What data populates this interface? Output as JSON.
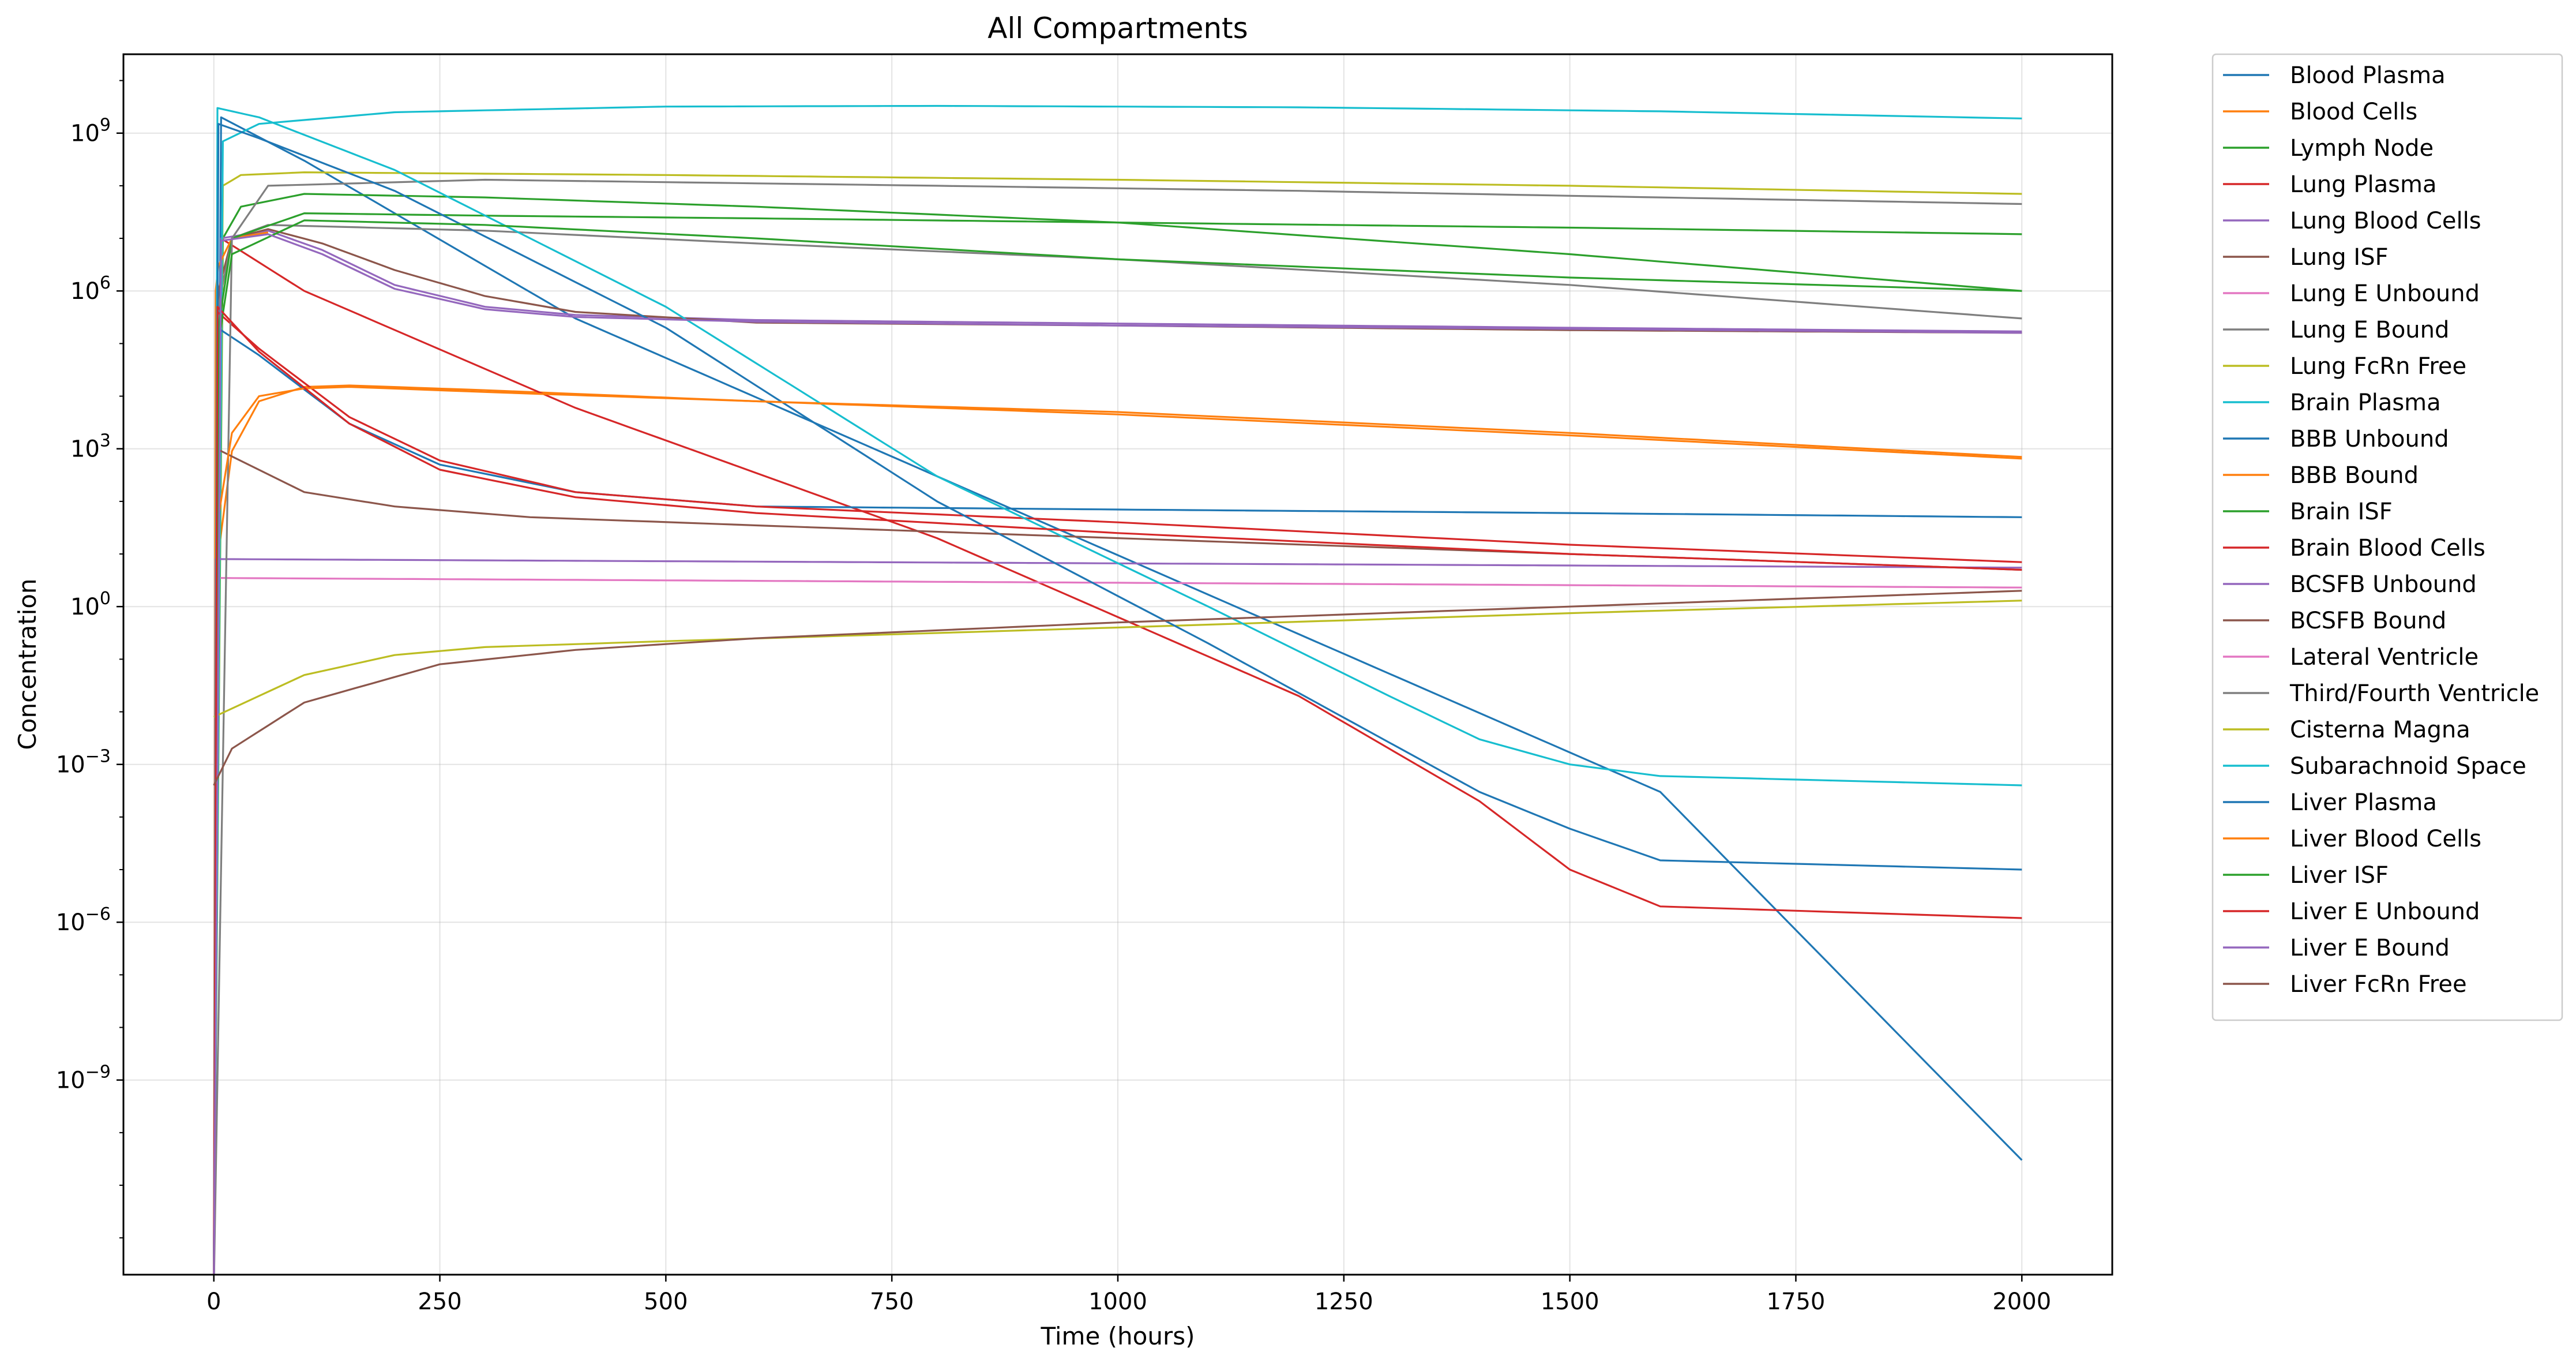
{
  "chart_data": {
    "type": "line",
    "title": "All Compartments",
    "xlabel": "Time (hours)",
    "ylabel": "Concentration",
    "yscale": "log",
    "xlim": [
      -100,
      2100
    ],
    "ylim_exponent": [
      -12.7,
      10.5
    ],
    "xticks": [
      0,
      250,
      500,
      750,
      1000,
      1250,
      1500,
      1750,
      2000
    ],
    "yticks_exponent": [
      -9,
      -6,
      -3,
      0,
      3,
      6,
      9
    ],
    "grid": true,
    "legend_position": "outside-right",
    "series": [
      {
        "name": "Blood Plasma",
        "color": "#1f77b4",
        "x": [
          0,
          8,
          100,
          400,
          800,
          1200,
          1600,
          2000
        ],
        "y": [
          1e-13,
          2000000000.0,
          300000000.0,
          300000.0,
          300,
          0.3,
          0.0003,
          3e-11
        ]
      },
      {
        "name": "Blood Cells",
        "color": "#ff7f0e",
        "x": [
          0,
          5,
          20,
          50,
          100,
          150,
          300,
          600,
          1000,
          1500,
          2000
        ],
        "y": [
          1e-13,
          10,
          900,
          8000,
          15000,
          16000,
          13000,
          8000,
          5000,
          2000,
          700
        ]
      },
      {
        "name": "Lymph Node",
        "color": "#2ca02c",
        "x": [
          0,
          10,
          30,
          100,
          300,
          600,
          1000,
          1500,
          2000
        ],
        "y": [
          1e-13,
          10000000.0,
          40000000.0,
          70000000.0,
          60000000.0,
          40000000.0,
          20000000.0,
          5000000.0,
          1000000.0
        ]
      },
      {
        "name": "Lung Plasma",
        "color": "#d62728",
        "x": [
          0,
          8,
          100,
          400,
          800,
          1200,
          1400,
          1500,
          1600,
          2000
        ],
        "y": [
          1e-13,
          10000000.0,
          1000000.0,
          6000,
          20,
          0.02,
          0.0002,
          1e-05,
          2e-06,
          1.2e-06
        ]
      },
      {
        "name": "Lung Blood Cells",
        "color": "#9467bd",
        "x": [
          0,
          8,
          60,
          120,
          200,
          300,
          400,
          600,
          1000,
          1500,
          2000
        ],
        "y": [
          1e-13,
          10000000.0,
          14000000.0,
          6000000.0,
          1300000.0,
          500000.0,
          350000.0,
          280000.0,
          240000.0,
          200000.0,
          170000.0
        ]
      },
      {
        "name": "Lung ISF",
        "color": "#8c564b",
        "x": [
          0,
          5,
          20,
          60,
          120,
          200,
          300,
          400,
          600,
          1000,
          1500,
          2000
        ],
        "y": [
          1e-13,
          1000000.0,
          10000000.0,
          15000000.0,
          8000000.0,
          2500000.0,
          800000.0,
          400000.0,
          250000.0,
          220000.0,
          180000.0,
          160000.0
        ]
      },
      {
        "name": "Lung E Unbound",
        "color": "#e377c2",
        "x": [
          0,
          2,
          2000
        ],
        "y": [
          1e-13,
          3.5,
          2.3
        ]
      },
      {
        "name": "Lung E Bound",
        "color": "#7f7f7f",
        "x": [
          0,
          5,
          20,
          60,
          300,
          600,
          1000,
          1500,
          2000
        ],
        "y": [
          1e-13,
          500000.0,
          10000000.0,
          18000000.0,
          14000000.0,
          8000000.0,
          4000000.0,
          1300000.0,
          300000.0
        ]
      },
      {
        "name": "Lung FcRn Free",
        "color": "#bcbd22",
        "x": [
          0,
          10,
          30,
          100,
          500,
          1000,
          1500,
          2000
        ],
        "y": [
          1e-13,
          100000000.0,
          160000000.0,
          180000000.0,
          160000000.0,
          130000000.0,
          100000000.0,
          70000000.0
        ]
      },
      {
        "name": "Brain Plasma",
        "color": "#17becf",
        "x": [
          0,
          10,
          50,
          200,
          500,
          800,
          1200,
          1600,
          2000
        ],
        "y": [
          1e-13,
          700000000.0,
          1500000000.0,
          2500000000.0,
          3200000000.0,
          3300000000.0,
          3100000000.0,
          2600000000.0,
          1900000000.0
        ]
      },
      {
        "name": "BBB Unbound",
        "color": "#1f77b4",
        "x": [
          0,
          4,
          50,
          150,
          250,
          400,
          600,
          1000,
          1500,
          2000
        ],
        "y": [
          1e-13,
          200000.0,
          60000.0,
          3000,
          500,
          150,
          80,
          70,
          60,
          50
        ]
      },
      {
        "name": "BBB Bound",
        "color": "#ff7f0e",
        "x": [
          0,
          2,
          5,
          20,
          60
        ],
        "y": [
          1e-13,
          1000000.0,
          3000000.0,
          10000000.0,
          13000000.0
        ]
      },
      {
        "name": "Brain ISF",
        "color": "#2ca02c",
        "x": [
          0,
          5,
          20,
          100,
          300,
          600,
          1000,
          1500,
          2000
        ],
        "y": [
          1e-13,
          200000.0,
          10000000.0,
          30000000.0,
          27000000.0,
          24000000.0,
          20000000.0,
          16000000.0,
          12000000.0
        ]
      },
      {
        "name": "Brain Blood Cells",
        "color": "#d62728",
        "x": [
          0,
          4,
          50,
          150,
          250,
          400,
          600,
          1000,
          1500,
          2000
        ],
        "y": [
          1e-13,
          400000.0,
          80000.0,
          4000,
          600,
          150,
          80,
          40,
          15,
          7
        ]
      },
      {
        "name": "BCSFB Unbound",
        "color": "#9467bd",
        "x": [
          0,
          2,
          2000
        ],
        "y": [
          1e-13,
          8,
          5.5
        ]
      },
      {
        "name": "BCSFB Bound",
        "color": "#8c564b",
        "x": [
          0,
          3,
          100,
          200,
          350,
          600,
          1000,
          1500,
          2000
        ],
        "y": [
          1e-13,
          1000,
          150,
          80,
          50,
          35,
          20,
          10,
          5
        ]
      },
      {
        "name": "Lateral Ventricle",
        "color": "#e377c2",
        "x": [
          0,
          5,
          2000
        ],
        "y": [
          1e-13,
          1e-13,
          1e-13
        ]
      },
      {
        "name": "Third/Fourth Ventricle",
        "color": "#7f7f7f",
        "x": [
          0,
          20,
          60,
          300,
          800,
          1200,
          1600,
          2000
        ],
        "y": [
          1e-13,
          10000000.0,
          100000000.0,
          130000000.0,
          100000000.0,
          80000000.0,
          60000000.0,
          45000000.0
        ]
      },
      {
        "name": "Cisterna Magna",
        "color": "#bcbd22",
        "x": [
          0,
          50,
          100,
          200,
          300,
          500,
          1000,
          1500,
          2000
        ],
        "y": [
          0.008,
          0.02,
          0.05,
          0.12,
          0.17,
          0.22,
          0.4,
          0.75,
          1.3
        ]
      },
      {
        "name": "Subarachnoid Space",
        "color": "#17becf",
        "x": [
          0,
          4,
          50,
          200,
          500,
          800,
          1100,
          1300,
          1400,
          1500,
          1600,
          2000
        ],
        "y": [
          1e-13,
          3000000000.0,
          2000000000.0,
          200000000.0,
          500000.0,
          300,
          1,
          0.02,
          0.003,
          0.001,
          0.0006,
          0.0004
        ]
      },
      {
        "name": "Liver Plasma",
        "color": "#1f77b4",
        "x": [
          0,
          5,
          50,
          200,
          500,
          800,
          1100,
          1400,
          1500,
          1600,
          2000
        ],
        "y": [
          1e-13,
          1500000000.0,
          800000000.0,
          80000000.0,
          200000.0,
          100,
          0.2,
          0.0003,
          6e-05,
          1.5e-05,
          1e-05
        ]
      },
      {
        "name": "Liver Blood Cells",
        "color": "#ff7f0e",
        "x": [
          0,
          5,
          20,
          50,
          100,
          150,
          300,
          600,
          1000,
          1500,
          2000
        ],
        "y": [
          1e-13,
          50,
          2000,
          10000,
          14000,
          15000,
          12000,
          8000,
          4500,
          1800,
          650
        ]
      },
      {
        "name": "Liver ISF",
        "color": "#2ca02c",
        "x": [
          0,
          5,
          20,
          100,
          300,
          600,
          1000,
          1500,
          2000
        ],
        "y": [
          1e-13,
          100000.0,
          5000000.0,
          22000000.0,
          18000000.0,
          10000000.0,
          4000000.0,
          1800000.0,
          1000000.0
        ]
      },
      {
        "name": "Liver E Unbound",
        "color": "#d62728",
        "x": [
          0,
          4,
          50,
          150,
          250,
          400,
          600,
          1000,
          1500,
          2000
        ],
        "y": [
          1e-13,
          500000.0,
          70000.0,
          3000,
          400,
          120,
          60,
          25,
          10,
          5
        ]
      },
      {
        "name": "Liver E Bound",
        "color": "#9467bd",
        "x": [
          0,
          8,
          60,
          120,
          200,
          300,
          400,
          600,
          1000,
          1500,
          2000
        ],
        "y": [
          1e-13,
          9000000.0,
          12000000.0,
          5000000.0,
          1100000.0,
          450000.0,
          320000.0,
          260000.0,
          220000.0,
          190000.0,
          160000.0
        ]
      },
      {
        "name": "Liver FcRn Free",
        "color": "#8c564b",
        "x": [
          0,
          20,
          100,
          250,
          400,
          600,
          1000,
          1500,
          2000
        ],
        "y": [
          0.0004,
          0.002,
          0.015,
          0.08,
          0.15,
          0.25,
          0.5,
          1,
          2
        ]
      }
    ]
  }
}
